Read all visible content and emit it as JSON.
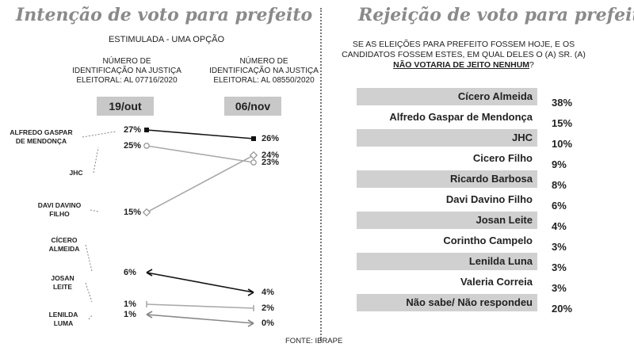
{
  "left": {
    "title": "Intenção de voto para prefeito",
    "subtitle": "ESTIMULADA - UMA OPÇÃO",
    "reg_left": [
      "NÚMERO DE",
      "IDENTIFICAÇÃO NA JUSTIÇA",
      "ELEITORAL: AL 07716/2020"
    ],
    "reg_right": [
      "NÚMERO DE",
      "IDENTIFICAÇÃO NA JUSTIÇA",
      "ELEITORAL: AL 08550/2020"
    ]
  },
  "right": {
    "title": "Rejeição de voto para prefeito",
    "question_line1": "SE AS ELEIÇÕES PARA PREFEITO FOSSEM HOJE, E OS",
    "question_line2": "CANDIDATOS FOSSEM ESTES, EM QUAL DELES O (A) SR. (A)",
    "question_emph": "NÃO VOTARIA DE JEITO NENHUM",
    "question_end": "?"
  },
  "source": "FONTE: IBRAPE",
  "chart_data": [
    {
      "type": "line",
      "categories": [
        "19/out",
        "06/nov"
      ],
      "series": [
        {
          "name": "ALFREDO GASPAR DE MENDONÇA",
          "label_lines": [
            "ALFREDO GASPAR",
            "DE MENDONÇA"
          ],
          "values": [
            27,
            26
          ],
          "labels": [
            "27%",
            "26%"
          ],
          "color": "#111111",
          "marker": "square-filled"
        },
        {
          "name": "JHC",
          "label_lines": [
            "JHC"
          ],
          "values": [
            25,
            23
          ],
          "labels": [
            "25%",
            "23%"
          ],
          "color": "#aaaaaa",
          "marker": "circle-open"
        },
        {
          "name": "DAVI DAVINO FILHO",
          "label_lines": [
            "DAVI DAVINO",
            "FILHO"
          ],
          "values": [
            15,
            24
          ],
          "labels": [
            "15%",
            "24%"
          ],
          "color": "#aaaaaa",
          "marker": "diamond-open"
        },
        {
          "name": "CÍCERO ALMEIDA",
          "label_lines": [
            "CÍCERO",
            "ALMEIDA"
          ],
          "values": [
            6,
            4
          ],
          "labels": [
            "6%",
            "4%"
          ],
          "color": "#111111",
          "marker": "arrow"
        },
        {
          "name": "JOSAN LEITE",
          "label_lines": [
            "JOSAN",
            "LEITE"
          ],
          "values": [
            1,
            2
          ],
          "labels": [
            "1%",
            "2%"
          ],
          "color": "#aaaaaa",
          "marker": "bar"
        },
        {
          "name": "LENILDA LUMA",
          "label_lines": [
            "LENILDA",
            "LUMA"
          ],
          "values": [
            1,
            0
          ],
          "labels": [
            "1%",
            "0%"
          ],
          "color": "#888888",
          "marker": "arrow"
        }
      ]
    },
    {
      "type": "table",
      "rows": [
        {
          "name": "Cícero Almeida",
          "value": 38,
          "label": "38%"
        },
        {
          "name": "Alfredo Gaspar de Mendonça",
          "value": 15,
          "label": "15%"
        },
        {
          "name": "JHC",
          "value": 10,
          "label": "10%"
        },
        {
          "name": "Cicero Filho",
          "value": 9,
          "label": "9%"
        },
        {
          "name": "Ricardo Barbosa",
          "value": 8,
          "label": "8%"
        },
        {
          "name": "Davi Davino Filho",
          "value": 6,
          "label": "6%"
        },
        {
          "name": "Josan Leite",
          "value": 4,
          "label": "4%"
        },
        {
          "name": "Corintho Campelo",
          "value": 3,
          "label": "3%"
        },
        {
          "name": "Lenilda Luna",
          "value": 3,
          "label": "3%"
        },
        {
          "name": "Valeria Correia",
          "value": 3,
          "label": "3%"
        },
        {
          "name": "Não sabe/ Não respondeu",
          "value": 20,
          "label": "20%"
        }
      ]
    }
  ]
}
